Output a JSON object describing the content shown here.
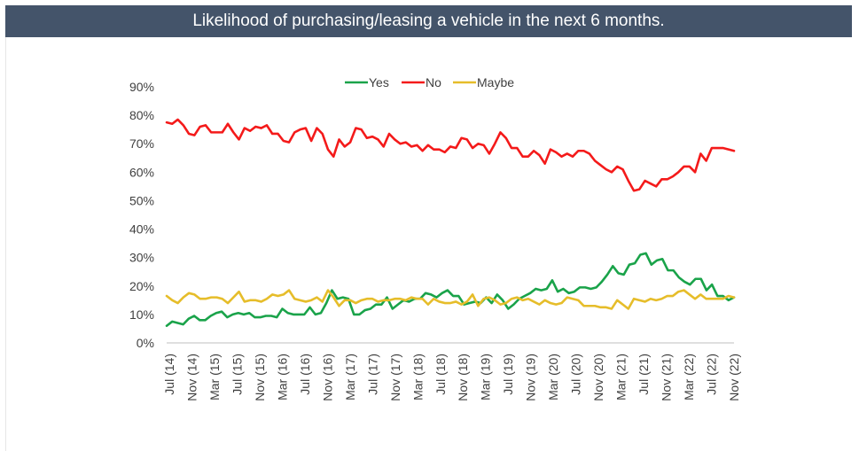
{
  "title": "Likelihood of purchasing/leasing a vehicle in the next 6 months.",
  "chart_data": {
    "type": "line",
    "title": "Likelihood of purchasing/leasing a vehicle in the next 6 months.",
    "xlabel": "",
    "ylabel": "",
    "ylim": [
      0,
      90
    ],
    "yticks": [
      "0%",
      "10%",
      "20%",
      "30%",
      "40%",
      "50%",
      "60%",
      "70%",
      "80%",
      "90%"
    ],
    "x_tick_labels": [
      "Jul (14)",
      "Nov (14)",
      "Mar (15)",
      "Jul (15)",
      "Nov (15)",
      "Mar (16)",
      "Jul (16)",
      "Nov (16)",
      "Mar (17)",
      "Jul (17)",
      "Nov (17)",
      "Mar (18)",
      "Jul (18)",
      "Nov (18)",
      "Mar (19)",
      "Jul (19)",
      "Nov (19)",
      "Mar (20)",
      "Jul (20)",
      "Nov (20)",
      "Mar (21)",
      "Jul (21)",
      "Nov (21)",
      "Mar (22)",
      "Jul (22)",
      "Nov (22)"
    ],
    "x_start": "Jul 2014",
    "x_end": "Nov 2022",
    "legend_position": "top",
    "grid": false,
    "series": [
      {
        "name": "Yes",
        "color": "#1aa34a",
        "values": [
          6,
          7.5,
          7,
          6.5,
          8.5,
          9.5,
          8,
          8,
          9.5,
          10.5,
          11,
          9,
          10,
          10.5,
          10,
          10.5,
          9,
          9,
          9.5,
          9.5,
          9,
          12,
          10.5,
          10,
          10,
          10,
          12.5,
          10,
          10.5,
          14,
          18.5,
          15.5,
          16,
          15.5,
          10,
          10,
          11.5,
          12,
          13.5,
          13.5,
          16,
          12,
          13.5,
          15,
          14.5,
          15.5,
          15.5,
          17.5,
          17,
          16,
          17.5,
          18.5,
          16.5,
          16.5,
          13.5,
          14,
          14.5,
          14,
          16,
          14,
          17,
          15,
          12,
          13.5,
          15.5,
          16.5,
          17.5,
          19,
          18.5,
          19,
          22,
          18,
          19,
          17.5,
          18,
          19.5,
          19.5,
          19,
          19.5,
          21.5,
          24,
          27,
          24.5,
          24,
          27.5,
          28,
          31,
          31.5,
          27.5,
          29,
          29.5,
          25.5,
          25.5,
          23,
          21.5,
          20.5,
          22.5,
          22.5,
          18.5,
          20.5,
          16.5,
          16.5,
          15,
          16
        ]
      },
      {
        "name": "No",
        "color": "#f41a1a",
        "values": [
          77.5,
          77,
          78.5,
          76.5,
          73.5,
          73,
          76,
          76.5,
          74,
          74,
          74,
          77,
          74,
          71.5,
          75.5,
          74.5,
          76,
          75.5,
          76.5,
          73.5,
          73.5,
          71,
          70.5,
          74,
          75,
          75.5,
          71,
          75.5,
          73.5,
          68,
          65.5,
          71.5,
          69,
          70.5,
          75.5,
          75,
          72,
          72.5,
          71.5,
          69,
          73.5,
          71.5,
          70,
          70.5,
          69,
          69.5,
          67.5,
          69.5,
          68,
          68,
          67,
          69,
          68.5,
          72,
          71.5,
          68.5,
          70,
          69.5,
          66.5,
          70,
          74,
          72,
          68.5,
          68.5,
          65.5,
          65.5,
          67.5,
          66,
          63,
          68,
          67,
          65.5,
          66.5,
          65.5,
          67.5,
          67.5,
          66.5,
          64,
          62.5,
          61,
          60,
          62,
          61,
          57,
          53.5,
          54,
          57,
          56,
          55,
          57.5,
          57.5,
          58.5,
          60,
          62,
          62,
          60,
          66.5,
          64,
          68.5,
          68.5,
          68.5,
          68,
          67.5
        ]
      },
      {
        "name": "Maybe",
        "color": "#e6bd2a",
        "values": [
          16.5,
          15,
          14,
          16,
          17.5,
          17,
          15.5,
          15.5,
          16,
          16,
          15.5,
          14,
          16,
          18,
          14.5,
          15,
          15,
          14.5,
          15.5,
          17,
          16.5,
          17,
          18.5,
          15.5,
          15,
          14.5,
          15,
          16,
          14.5,
          18.5,
          16,
          13,
          15,
          15,
          14,
          15,
          15.5,
          15.5,
          14.5,
          15,
          15,
          15.5,
          15.5,
          15,
          16,
          15.5,
          15.5,
          13.5,
          15.5,
          14.5,
          14,
          14,
          14.5,
          13.5,
          14.5,
          17,
          13,
          15.5,
          16,
          15,
          13.5,
          14,
          15.5,
          16,
          15,
          15.5,
          14.5,
          13.5,
          15,
          14,
          13.5,
          14,
          16,
          15.5,
          15,
          13,
          13,
          13,
          12.5,
          12.5,
          12,
          15,
          13.5,
          12,
          15.5,
          15,
          14.5,
          15.5,
          15,
          15.5,
          16.5,
          16.5,
          18,
          18.5,
          17,
          15.5,
          17,
          15.5,
          15.5,
          15.5,
          15.5,
          16.5,
          16
        ]
      }
    ]
  }
}
